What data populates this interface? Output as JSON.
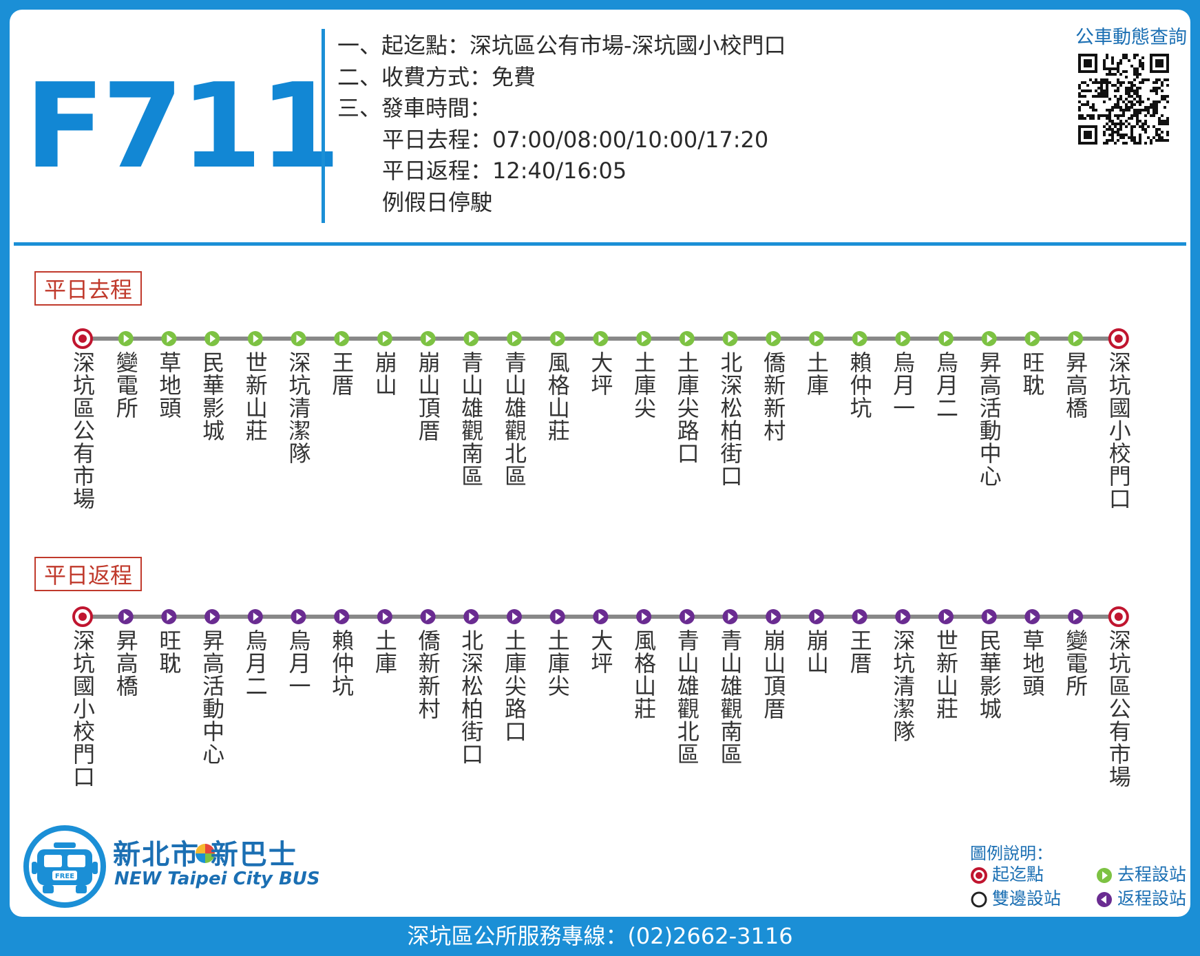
{
  "route_number": "F711",
  "info": {
    "line1": "一、起迄點：深坑區公有市場-深坑國小校門口",
    "line2": "二、收費方式：免費",
    "line3": "三、發車時間：",
    "line4": "平日去程：07:00/08:00/10:00/17:20",
    "line5": "平日返程：12:40/16:05",
    "line6": "例假日停駛"
  },
  "qr_label": "公車動態查詢",
  "outbound": {
    "label": "平日去程",
    "stops": [
      "深坑區公有市場",
      "變電所",
      "草地頭",
      "民華影城",
      "世新山莊",
      "深坑清潔隊",
      "王厝",
      "崩山",
      "崩山頂厝",
      "青山雄觀南區",
      "青山雄觀北區",
      "風格山莊",
      "大坪",
      "土庫尖",
      "土庫尖路口",
      "北深松柏街口",
      "僑新新村",
      "土庫",
      "賴仲坑",
      "烏月一",
      "烏月二",
      "昇高活動中心",
      "旺耽",
      "昇高橋",
      "深坑國小校門口"
    ]
  },
  "return": {
    "label": "平日返程",
    "stops": [
      "深坑國小校門口",
      "昇高橋",
      "旺耽",
      "昇高活動中心",
      "烏月二",
      "烏月一",
      "賴仲坑",
      "土庫",
      "僑新新村",
      "北深松柏街口",
      "土庫尖路口",
      "土庫尖",
      "大坪",
      "風格山莊",
      "青山雄觀北區",
      "青山雄觀南區",
      "崩山頂厝",
      "崩山",
      "王厝",
      "深坑清潔隊",
      "世新山莊",
      "民華影城",
      "草地頭",
      "變電所",
      "深坑區公有市場"
    ]
  },
  "logo": {
    "cn": "新北市 新巴士",
    "en": "NEW Taipei City BUS",
    "badge": "FREE"
  },
  "legend": {
    "title": "圖例說明：",
    "terminal": "起迄點",
    "outbound_stop": "去程設站",
    "both_stop": "雙邊設站",
    "return_stop": "返程設站"
  },
  "footer": "深坑區公所服務專線：(02)2662-3116",
  "colors": {
    "brand_blue": "#1b8fd6",
    "outbound_green": "#7dc243",
    "return_purple": "#6a2c91",
    "terminal_red": "#c0152f",
    "line_gray": "#888888"
  }
}
